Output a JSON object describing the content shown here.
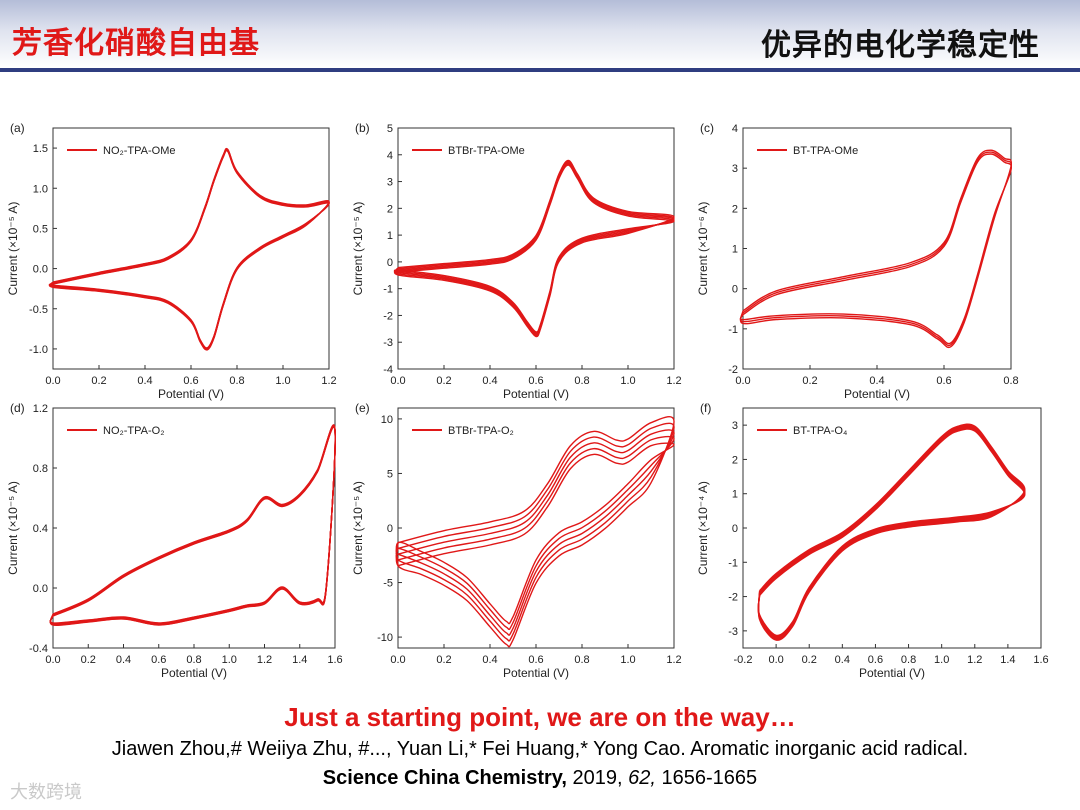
{
  "header": {
    "title_left": "芳香化硝酸自由基",
    "title_right": "优异的电化学稳定性"
  },
  "footer": {
    "tagline": "Just a starting point, we are on the way…",
    "authors": "Jiawen Zhou,# Weiiya Zhu, #..., Yuan Li,* Fei Huang,* Yong Cao. Aromatic inorganic acid radical.",
    "journal": "Science China Chemistry,",
    "year": "2019,",
    "volume": "62,",
    "pages": "1656-1665",
    "watermark": "大数跨境"
  },
  "colors": {
    "curve": "#e01818",
    "title_red": "#e01818",
    "rule": "#2f3d80"
  },
  "chart_data": [
    {
      "panel": "(a)",
      "type": "line",
      "legend": "NO₂-TPA-OMe",
      "xlabel": "Potential (V)",
      "ylabel": "Current (×10⁻⁵ A)",
      "xlim": [
        0.0,
        1.2
      ],
      "ylim": [
        -1.25,
        1.75
      ],
      "xticks": [
        "0.0",
        "0.2",
        "0.4",
        "0.6",
        "0.8",
        "1.0",
        "1.2"
      ],
      "yticks": [
        "-1.0",
        "-0.5",
        "0.0",
        "0.5",
        "1.0",
        "1.5"
      ],
      "ytick_values": [
        -1.0,
        -0.5,
        0.0,
        0.5,
        1.0,
        1.5
      ],
      "cycles": 8,
      "spread": 0.012,
      "series": [
        {
          "x": [
            0.0,
            0.2,
            0.4,
            0.5,
            0.6,
            0.66,
            0.7,
            0.74,
            0.76,
            0.8,
            0.9,
            1.0,
            1.1,
            1.2
          ],
          "y": [
            -0.18,
            -0.06,
            0.05,
            0.13,
            0.35,
            0.75,
            1.1,
            1.4,
            1.47,
            1.2,
            0.9,
            0.8,
            0.78,
            0.82
          ]
        },
        {
          "x": [
            1.2,
            1.1,
            1.0,
            0.9,
            0.8,
            0.74,
            0.7,
            0.67,
            0.64,
            0.6,
            0.5,
            0.4,
            0.2,
            0.0
          ],
          "y": [
            0.72,
            0.55,
            0.4,
            0.25,
            0.0,
            -0.45,
            -0.85,
            -1.0,
            -0.9,
            -0.65,
            -0.42,
            -0.35,
            -0.27,
            -0.22
          ]
        }
      ]
    },
    {
      "panel": "(b)",
      "type": "line",
      "legend": "BTBr-TPA-OMe",
      "xlabel": "Potential (V)",
      "ylabel": "Current (×10⁻⁵ A)",
      "xlim": [
        0.0,
        1.2
      ],
      "ylim": [
        -4,
        5
      ],
      "xticks": [
        "0.0",
        "0.2",
        "0.4",
        "0.6",
        "0.8",
        "1.0",
        "1.2"
      ],
      "yticks": [
        "-4",
        "-3",
        "-2",
        "-1",
        "0",
        "1",
        "2",
        "3",
        "4",
        "5"
      ],
      "ytick_values": [
        -4,
        -3,
        -2,
        -1,
        0,
        1,
        2,
        3,
        4,
        5
      ],
      "cycles": 5,
      "spread": 0.03,
      "series": [
        {
          "x": [
            0.0,
            0.2,
            0.4,
            0.5,
            0.6,
            0.66,
            0.7,
            0.74,
            0.78,
            0.85,
            1.0,
            1.2
          ],
          "y": [
            -0.3,
            -0.15,
            0.0,
            0.2,
            0.9,
            2.2,
            3.2,
            3.7,
            3.2,
            2.3,
            1.8,
            1.6
          ]
        },
        {
          "x": [
            1.2,
            1.0,
            0.8,
            0.7,
            0.66,
            0.62,
            0.6,
            0.56,
            0.5,
            0.4,
            0.2,
            0.0
          ],
          "y": [
            1.45,
            1.15,
            0.8,
            0.1,
            -1.2,
            -2.4,
            -2.7,
            -2.3,
            -1.6,
            -1.0,
            -0.6,
            -0.4
          ]
        }
      ]
    },
    {
      "panel": "(c)",
      "type": "line",
      "legend": "BT-TPA-OMe",
      "xlabel": "Potential (V)",
      "ylabel": "Current (×10⁻⁶ A)",
      "xlim": [
        0.0,
        0.8
      ],
      "ylim": [
        -2,
        4
      ],
      "xticks": [
        "0.0",
        "0.2",
        "0.4",
        "0.6",
        "0.8"
      ],
      "yticks": [
        "-2",
        "-1",
        "0",
        "1",
        "2",
        "3",
        "4"
      ],
      "ytick_values": [
        -2,
        -1,
        0,
        1,
        2,
        3,
        4
      ],
      "cycles": 3,
      "spread": 0.03,
      "series": [
        {
          "x": [
            0.0,
            0.1,
            0.3,
            0.5,
            0.6,
            0.65,
            0.7,
            0.74,
            0.78,
            0.8
          ],
          "y": [
            -0.6,
            -0.1,
            0.25,
            0.6,
            1.1,
            2.2,
            3.2,
            3.4,
            3.2,
            3.0
          ]
        },
        {
          "x": [
            0.8,
            0.75,
            0.7,
            0.66,
            0.62,
            0.58,
            0.5,
            0.3,
            0.1,
            0.0
          ],
          "y": [
            3.0,
            1.8,
            0.3,
            -0.8,
            -1.4,
            -1.2,
            -0.85,
            -0.68,
            -0.72,
            -0.82
          ]
        }
      ]
    },
    {
      "panel": "(d)",
      "type": "line",
      "legend": "NO₂-TPA-O₂",
      "xlabel": "Potential (V)",
      "ylabel": "Current (×10⁻⁵ A)",
      "xlim": [
        0.0,
        1.6
      ],
      "ylim": [
        -0.4,
        1.2
      ],
      "xticks": [
        "0.0",
        "0.2",
        "0.4",
        "0.6",
        "0.8",
        "1.0",
        "1.2",
        "1.4",
        "1.6"
      ],
      "yticks": [
        "-0.4",
        "0.0",
        "0.4",
        "0.8",
        "1.2"
      ],
      "ytick_values": [
        -0.4,
        0.0,
        0.4,
        0.8,
        1.2
      ],
      "cycles": 9,
      "spread": 0.012,
      "series": [
        {
          "x": [
            0.0,
            0.2,
            0.4,
            0.6,
            0.8,
            1.0,
            1.1,
            1.2,
            1.3,
            1.4,
            1.5,
            1.6
          ],
          "y": [
            -0.18,
            -0.08,
            0.08,
            0.2,
            0.3,
            0.38,
            0.45,
            0.6,
            0.55,
            0.62,
            0.78,
            1.05
          ]
        },
        {
          "x": [
            1.6,
            1.55,
            1.5,
            1.4,
            1.3,
            1.2,
            1.1,
            1.0,
            0.8,
            0.6,
            0.4,
            0.2,
            0.0
          ],
          "y": [
            0.2,
            0.0,
            -0.08,
            -0.1,
            0.0,
            -0.1,
            -0.12,
            -0.15,
            -0.2,
            -0.24,
            -0.2,
            -0.22,
            -0.24
          ]
        }
      ]
    },
    {
      "panel": "(e)",
      "type": "line",
      "legend": "BTBr-TPA-O₂",
      "xlabel": "Potential (V)",
      "ylabel": "Current (×10⁻⁵ A)",
      "xlim": [
        0.0,
        1.2
      ],
      "ylim": [
        -11,
        11
      ],
      "xticks": [
        "0.0",
        "0.2",
        "0.4",
        "0.6",
        "0.8",
        "1.0",
        "1.2"
      ],
      "yticks": [
        "-10",
        "-5",
        "0",
        "5",
        "10"
      ],
      "ytick_values": [
        -10,
        -5,
        0,
        5,
        10
      ],
      "cycles": 5,
      "spread": 0.15,
      "series": [
        {
          "x": [
            0.0,
            0.2,
            0.4,
            0.55,
            0.65,
            0.75,
            0.85,
            0.95,
            1.0,
            1.1,
            1.2
          ],
          "y": [
            -2.4,
            -1.3,
            -0.5,
            0.5,
            3.0,
            6.5,
            7.8,
            7.0,
            7.1,
            8.6,
            8.7
          ]
        },
        {
          "x": [
            1.2,
            1.1,
            1.0,
            0.9,
            0.8,
            0.7,
            0.6,
            0.5,
            0.47,
            0.4,
            0.3,
            0.2,
            0.1,
            0.0
          ],
          "y": [
            8.2,
            5.2,
            3.0,
            1.0,
            -0.5,
            -1.5,
            -4.0,
            -9.2,
            -9.6,
            -8.0,
            -5.6,
            -4.2,
            -3.2,
            -2.4
          ]
        }
      ]
    },
    {
      "panel": "(f)",
      "type": "line",
      "legend": "BT-TPA-O₄",
      "xlabel": "Potential (V)",
      "ylabel": "Current (×10⁻⁴ A)",
      "xlim": [
        -0.2,
        1.6
      ],
      "ylim": [
        -3.5,
        3.5
      ],
      "xticks": [
        "-0.2",
        "0.0",
        "0.2",
        "0.4",
        "0.6",
        "0.8",
        "1.0",
        "1.2",
        "1.4",
        "1.6"
      ],
      "yticks": [
        "-3",
        "-2",
        "-1",
        "0",
        "1",
        "2",
        "3"
      ],
      "ytick_values": [
        -3,
        -2,
        -1,
        0,
        1,
        2,
        3
      ],
      "cycles": 6,
      "spread": 0.03,
      "series": [
        {
          "x": [
            -0.1,
            0.0,
            0.2,
            0.4,
            0.6,
            0.8,
            1.0,
            1.1,
            1.2,
            1.3,
            1.4,
            1.5
          ],
          "y": [
            -1.9,
            -1.4,
            -0.7,
            -0.2,
            0.6,
            1.6,
            2.6,
            2.9,
            2.9,
            2.3,
            1.6,
            1.0
          ]
        },
        {
          "x": [
            1.5,
            1.3,
            1.1,
            1.0,
            0.8,
            0.6,
            0.4,
            0.2,
            0.1,
            0.0,
            -0.1
          ],
          "y": [
            0.9,
            0.4,
            0.25,
            0.2,
            0.1,
            -0.1,
            -0.6,
            -1.8,
            -2.8,
            -3.2,
            -2.6
          ]
        }
      ]
    }
  ]
}
